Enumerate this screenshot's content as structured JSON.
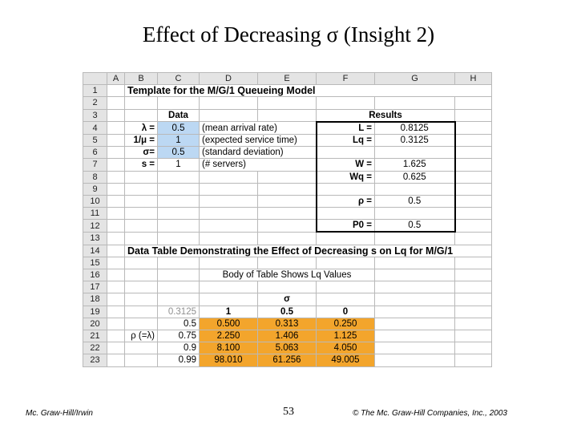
{
  "slide": {
    "title": "Effect of Decreasing σ (Insight 2)",
    "footer_left": "Mc. Graw-Hill/Irwin",
    "page_number": "53",
    "footer_right": "© The Mc. Graw-Hill Companies, Inc., 2003"
  },
  "sheet": {
    "columns": [
      "A",
      "B",
      "C",
      "D",
      "E",
      "F",
      "G",
      "H"
    ],
    "rows": [
      "1",
      "2",
      "3",
      "4",
      "5",
      "6",
      "7",
      "8",
      "9",
      "10",
      "11",
      "12",
      "13",
      "14",
      "15",
      "16",
      "17",
      "18",
      "19",
      "20",
      "21",
      "22",
      "23"
    ],
    "title": "Template for the M/G/1 Queueing Model",
    "data_header": "Data",
    "results_header": "Results",
    "inputs": [
      {
        "label": "λ =",
        "value": "0.5",
        "desc": "(mean arrival rate)"
      },
      {
        "label": "1/μ =",
        "value": "1",
        "desc": "(expected service time)"
      },
      {
        "label": "σ=",
        "value": "0.5",
        "desc": "(standard deviation)"
      },
      {
        "label": "s =",
        "value": "1",
        "desc": "(# servers)"
      }
    ],
    "results": {
      "L_label": "L =",
      "L_value": "0.8125",
      "Lq_label": "Lq =",
      "Lq_value": "0.3125",
      "W_label": "W =",
      "W_value": "1.625",
      "Wq_label": "Wq =",
      "Wq_value": "0.625",
      "rho_label": "ρ =",
      "rho_value": "0.5",
      "P0_label": "P0 =",
      "P0_value": "0.5"
    },
    "table_title": "Data Table Demonstrating the Effect of Decreasing s on Lq for M/G/1",
    "body_caption": "Body of Table Shows Lq Values",
    "sigma_label": "σ",
    "corner_value": "0.3125",
    "rho_axis_label": "ρ (=λ)",
    "sigma_headers": [
      "1",
      "0.5",
      "0"
    ],
    "table_rows": [
      {
        "rho": "0.5",
        "values": [
          "0.500",
          "0.313",
          "0.250"
        ]
      },
      {
        "rho": "0.75",
        "values": [
          "2.250",
          "1.406",
          "1.125"
        ]
      },
      {
        "rho": "0.9",
        "values": [
          "8.100",
          "5.063",
          "4.050"
        ]
      },
      {
        "rho": "0.99",
        "values": [
          "98.010",
          "61.256",
          "49.005"
        ]
      }
    ]
  }
}
